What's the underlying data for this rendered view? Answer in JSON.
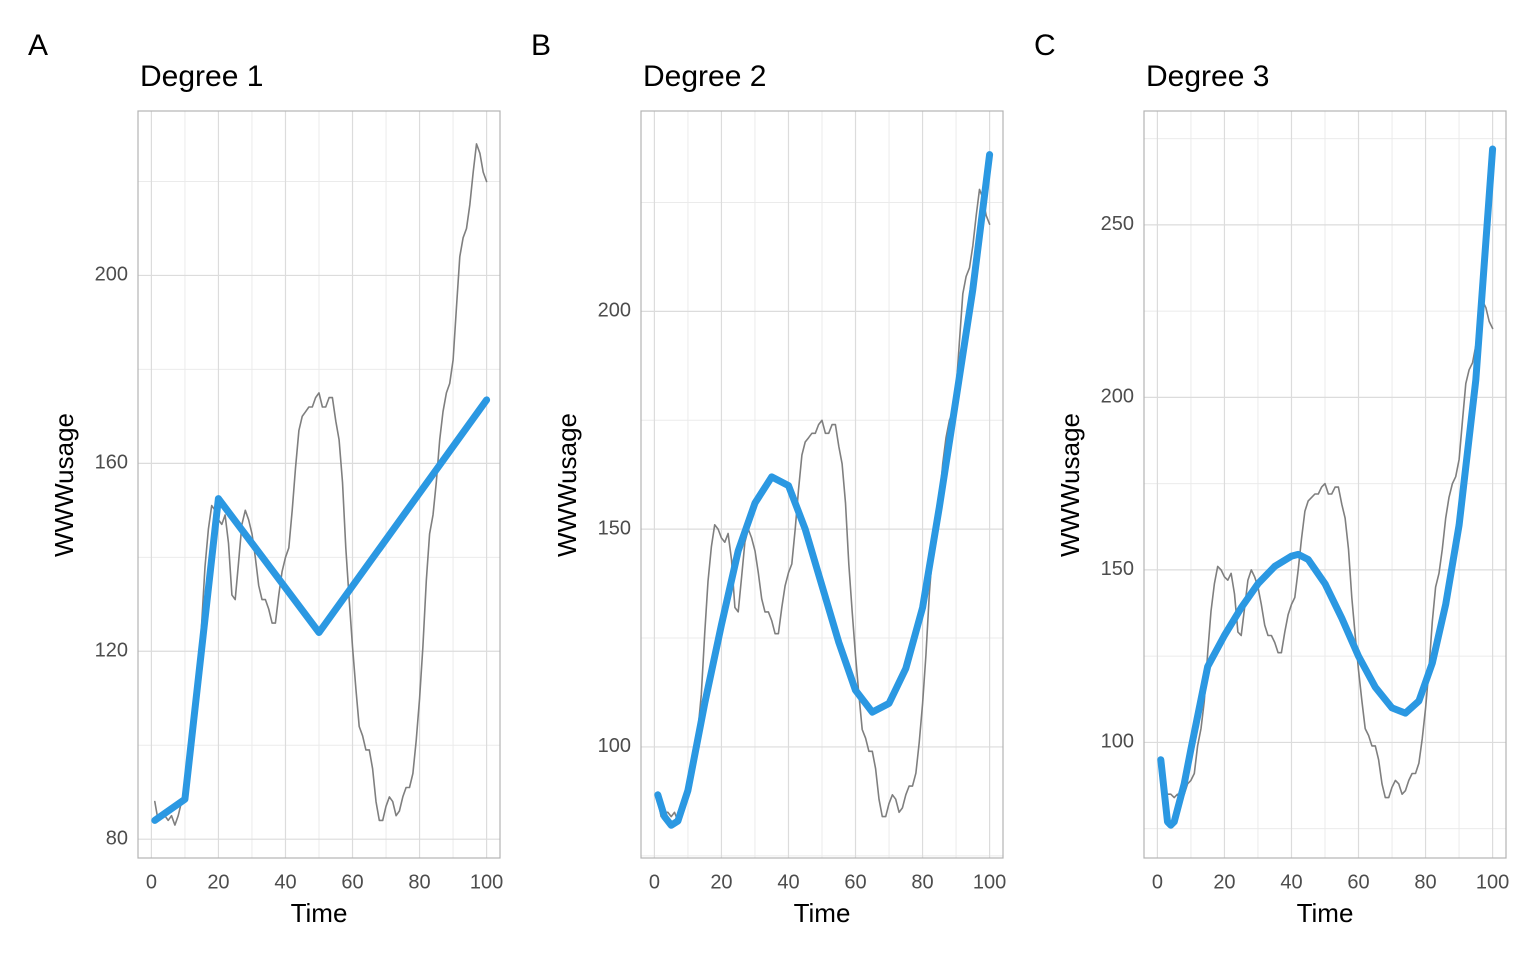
{
  "chart_data": [
    {
      "type": "line",
      "panel_label": "A",
      "title": "Degree 1",
      "x_label": "Time",
      "y_label": "WWWusage",
      "xlim": [
        -4,
        104
      ],
      "ylim": [
        76,
        235
      ],
      "xticks": [
        0,
        20,
        40,
        60,
        80,
        100
      ],
      "yticks": [
        80,
        120,
        160,
        200
      ],
      "grid": true,
      "series": [
        {
          "color": "#7f7f7f",
          "x": [
            1,
            2,
            3,
            4,
            5,
            6,
            7,
            8,
            9,
            10,
            11,
            12,
            13,
            14,
            15,
            16,
            17,
            18,
            19,
            20,
            21,
            22,
            23,
            24,
            25,
            26,
            27,
            28,
            29,
            30,
            31,
            32,
            33,
            34,
            35,
            36,
            37,
            38,
            39,
            40,
            41,
            42,
            43,
            44,
            45,
            46,
            47,
            48,
            49,
            50,
            51,
            52,
            53,
            54,
            55,
            56,
            57,
            58,
            59,
            60,
            61,
            62,
            63,
            64,
            65,
            66,
            67,
            68,
            69,
            70,
            71,
            72,
            73,
            74,
            75,
            76,
            77,
            78,
            79,
            80,
            81,
            82,
            83,
            84,
            85,
            86,
            87,
            88,
            89,
            90,
            91,
            92,
            93,
            94,
            95,
            96,
            97,
            98,
            99,
            100
          ],
          "values": [
            88,
            84,
            85,
            85,
            84,
            85,
            83,
            85,
            88,
            89,
            91,
            99,
            104,
            112,
            126,
            138,
            146,
            151,
            150,
            148,
            147,
            149,
            143,
            132,
            131,
            139,
            147,
            150,
            148,
            145,
            140,
            134,
            131,
            131,
            129,
            126,
            126,
            132,
            137,
            140,
            142,
            150,
            159,
            167,
            170,
            171,
            172,
            172,
            174,
            175,
            172,
            172,
            174,
            174,
            169,
            165,
            156,
            142,
            131,
            121,
            112,
            104,
            102,
            99,
            99,
            95,
            88,
            84,
            84,
            87,
            89,
            88,
            85,
            86,
            89,
            91,
            91,
            94,
            101,
            110,
            121,
            135,
            145,
            149,
            156,
            165,
            171,
            175,
            177,
            182,
            193,
            204,
            208,
            210,
            215,
            222,
            228,
            226,
            222,
            220
          ]
        },
        {
          "color": "#2b98e2",
          "x": [
            1,
            10,
            20,
            50,
            100
          ],
          "values": [
            84,
            88.5,
            152.5,
            124,
            173.5
          ]
        }
      ]
    },
    {
      "type": "line",
      "panel_label": "B",
      "title": "Degree 2",
      "x_label": "Time",
      "y_label": "WWWusage",
      "xlim": [
        -4,
        104
      ],
      "ylim": [
        74.5,
        246
      ],
      "xticks": [
        0,
        20,
        40,
        60,
        80,
        100
      ],
      "yticks": [
        100,
        150,
        200
      ],
      "grid": true,
      "series": [
        {
          "color": "#7f7f7f",
          "x": [
            1,
            2,
            3,
            4,
            5,
            6,
            7,
            8,
            9,
            10,
            11,
            12,
            13,
            14,
            15,
            16,
            17,
            18,
            19,
            20,
            21,
            22,
            23,
            24,
            25,
            26,
            27,
            28,
            29,
            30,
            31,
            32,
            33,
            34,
            35,
            36,
            37,
            38,
            39,
            40,
            41,
            42,
            43,
            44,
            45,
            46,
            47,
            48,
            49,
            50,
            51,
            52,
            53,
            54,
            55,
            56,
            57,
            58,
            59,
            60,
            61,
            62,
            63,
            64,
            65,
            66,
            67,
            68,
            69,
            70,
            71,
            72,
            73,
            74,
            75,
            76,
            77,
            78,
            79,
            80,
            81,
            82,
            83,
            84,
            85,
            86,
            87,
            88,
            89,
            90,
            91,
            92,
            93,
            94,
            95,
            96,
            97,
            98,
            99,
            100
          ],
          "values": [
            88,
            84,
            85,
            85,
            84,
            85,
            83,
            85,
            88,
            89,
            91,
            99,
            104,
            112,
            126,
            138,
            146,
            151,
            150,
            148,
            147,
            149,
            143,
            132,
            131,
            139,
            147,
            150,
            148,
            145,
            140,
            134,
            131,
            131,
            129,
            126,
            126,
            132,
            137,
            140,
            142,
            150,
            159,
            167,
            170,
            171,
            172,
            172,
            174,
            175,
            172,
            172,
            174,
            174,
            169,
            165,
            156,
            142,
            131,
            121,
            112,
            104,
            102,
            99,
            99,
            95,
            88,
            84,
            84,
            87,
            89,
            88,
            85,
            86,
            89,
            91,
            91,
            94,
            101,
            110,
            121,
            135,
            145,
            149,
            156,
            165,
            171,
            175,
            177,
            182,
            193,
            204,
            208,
            210,
            215,
            222,
            228,
            226,
            222,
            220
          ]
        },
        {
          "color": "#2b98e2",
          "x": [
            1,
            3,
            5,
            7,
            10,
            15,
            20,
            25,
            30,
            35,
            40,
            45,
            50,
            55,
            60,
            65,
            70,
            75,
            80,
            85,
            90,
            95,
            100
          ],
          "values": [
            89,
            84,
            82,
            83,
            90,
            110,
            128,
            145,
            156,
            162,
            160,
            150,
            137,
            124,
            113,
            108,
            110,
            118,
            132,
            155,
            180,
            205,
            236
          ]
        }
      ]
    },
    {
      "type": "line",
      "panel_label": "C",
      "title": "Degree 3",
      "x_label": "Time",
      "y_label": "WWWusage",
      "xlim": [
        -4,
        104
      ],
      "ylim": [
        66.5,
        283
      ],
      "xticks": [
        0,
        20,
        40,
        60,
        80,
        100
      ],
      "yticks": [
        100,
        150,
        200,
        250
      ],
      "grid": true,
      "series": [
        {
          "color": "#7f7f7f",
          "x": [
            1,
            2,
            3,
            4,
            5,
            6,
            7,
            8,
            9,
            10,
            11,
            12,
            13,
            14,
            15,
            16,
            17,
            18,
            19,
            20,
            21,
            22,
            23,
            24,
            25,
            26,
            27,
            28,
            29,
            30,
            31,
            32,
            33,
            34,
            35,
            36,
            37,
            38,
            39,
            40,
            41,
            42,
            43,
            44,
            45,
            46,
            47,
            48,
            49,
            50,
            51,
            52,
            53,
            54,
            55,
            56,
            57,
            58,
            59,
            60,
            61,
            62,
            63,
            64,
            65,
            66,
            67,
            68,
            69,
            70,
            71,
            72,
            73,
            74,
            75,
            76,
            77,
            78,
            79,
            80,
            81,
            82,
            83,
            84,
            85,
            86,
            87,
            88,
            89,
            90,
            91,
            92,
            93,
            94,
            95,
            96,
            97,
            98,
            99,
            100
          ],
          "values": [
            88,
            84,
            85,
            85,
            84,
            85,
            83,
            85,
            88,
            89,
            91,
            99,
            104,
            112,
            126,
            138,
            146,
            151,
            150,
            148,
            147,
            149,
            143,
            132,
            131,
            139,
            147,
            150,
            148,
            145,
            140,
            134,
            131,
            131,
            129,
            126,
            126,
            132,
            137,
            140,
            142,
            150,
            159,
            167,
            170,
            171,
            172,
            172,
            174,
            175,
            172,
            172,
            174,
            174,
            169,
            165,
            156,
            142,
            131,
            121,
            112,
            104,
            102,
            99,
            99,
            95,
            88,
            84,
            84,
            87,
            89,
            88,
            85,
            86,
            89,
            91,
            91,
            94,
            101,
            110,
            121,
            135,
            145,
            149,
            156,
            165,
            171,
            175,
            177,
            182,
            193,
            204,
            208,
            210,
            215,
            222,
            228,
            226,
            222,
            220
          ]
        },
        {
          "color": "#2b98e2",
          "x": [
            1,
            3,
            4,
            5,
            8,
            10,
            15,
            20,
            25,
            30,
            35,
            40,
            42,
            45,
            50,
            55,
            60,
            65,
            70,
            74,
            78,
            82,
            86,
            90,
            95,
            100
          ],
          "values": [
            95,
            77,
            76,
            77,
            88,
            98,
            122,
            131,
            139,
            146,
            151,
            154,
            154.5,
            153,
            146,
            136,
            125,
            116,
            110,
            108.5,
            112,
            123,
            140,
            163,
            205,
            272
          ]
        }
      ]
    }
  ]
}
